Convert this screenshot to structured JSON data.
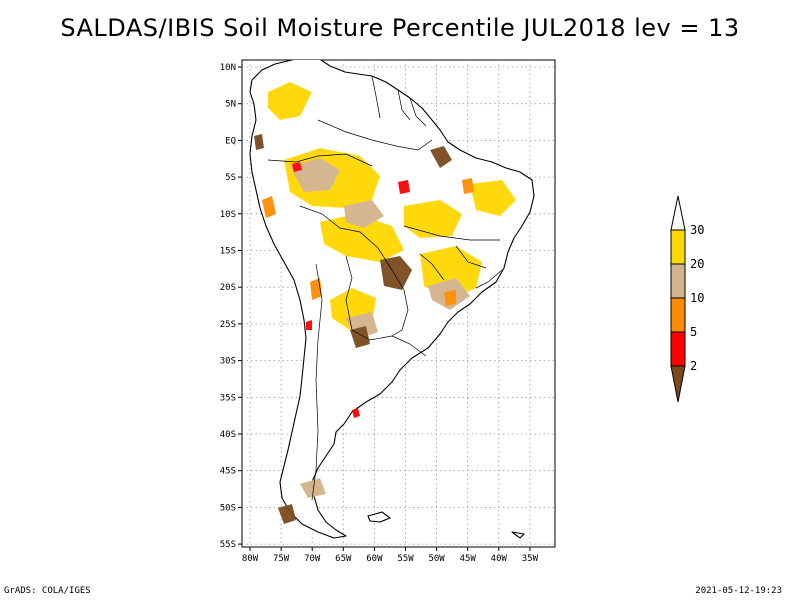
{
  "title": "SALDAS/IBIS Soil Moisture Percentile JUL2018 lev = 13",
  "lat_ticks": [
    "10N",
    "5N",
    "EQ",
    "5S",
    "10S",
    "15S",
    "20S",
    "25S",
    "30S",
    "35S",
    "40S",
    "45S",
    "50S",
    "55S"
  ],
  "lon_ticks": [
    "80W",
    "75W",
    "70W",
    "65W",
    "60W",
    "55W",
    "50W",
    "45W",
    "40W",
    "35W"
  ],
  "legend": {
    "levels": [
      "2",
      "5",
      "10",
      "20",
      "30"
    ],
    "colors": [
      "#7a4a1e",
      "#ff0000",
      "#ff8c00",
      "#d2b48c",
      "#ffd700",
      "#ffffff"
    ]
  },
  "footer_left": "GrADS: COLA/IGES",
  "footer_right": "2021-05-12-19:23"
}
